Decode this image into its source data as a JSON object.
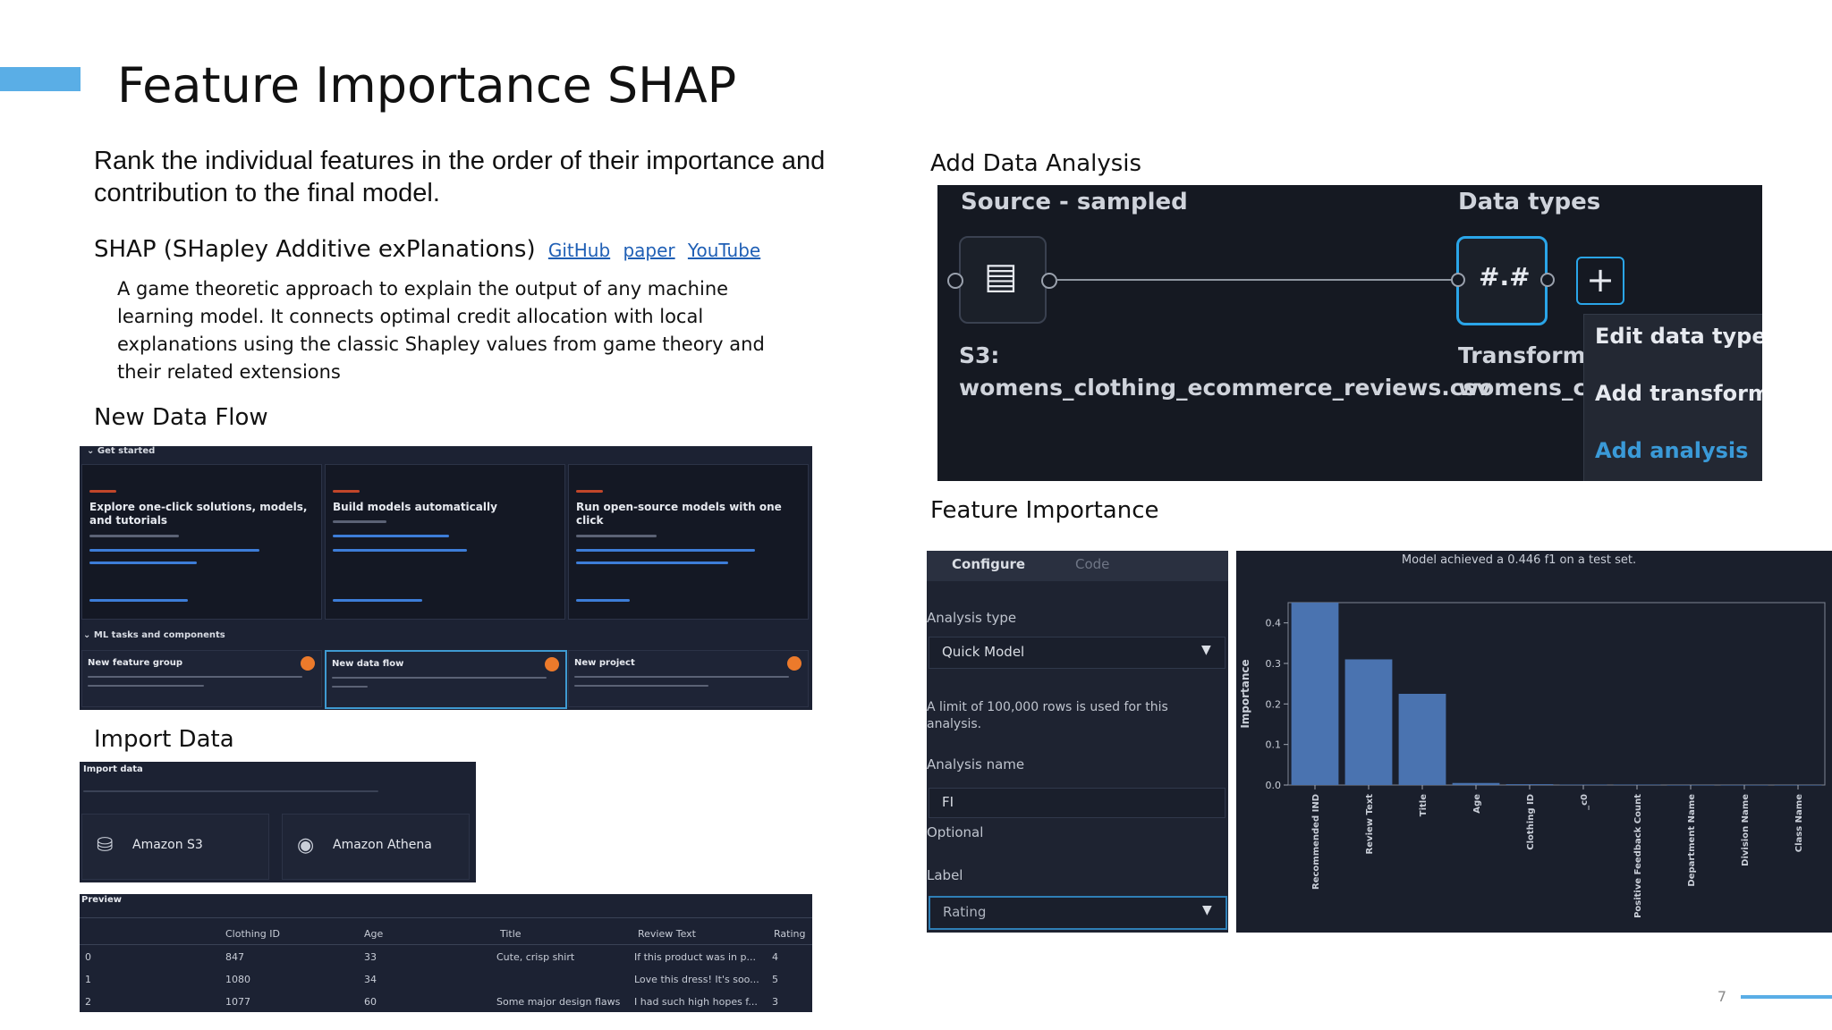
{
  "slide": {
    "title": "Feature Importance SHAP",
    "description": "Rank the individual features in the order of their importance and contribution to the final model.",
    "shap_heading": "SHAP (SHapley Additive exPlanations)",
    "links": [
      "GitHub",
      "paper",
      "YouTube"
    ],
    "shap_description": "A game theoretic approach to explain the output of any machine learning model. It connects optimal credit allocation with local explanations using the classic Shapley values from game theory and their related extensions",
    "page_number": "7",
    "accent_color": "#5aaee6",
    "link_color": "#1f5fb5"
  },
  "new_data_flow": {
    "label": "New Data Flow",
    "get_started": "Get started",
    "cards": [
      {
        "title": "Explore one-click solutions, models, and tutorials"
      },
      {
        "title": "Build models automatically"
      },
      {
        "title": "Run open-source models with one click"
      }
    ],
    "ml_tasks": "ML tasks and components",
    "tasks": [
      {
        "title": "New feature group"
      },
      {
        "title": "New data flow"
      },
      {
        "title": "New project"
      }
    ]
  },
  "import_data": {
    "label": "Import Data",
    "panel_title": "Import data",
    "sources": [
      "Amazon S3",
      "Amazon Athena"
    ]
  },
  "preview": {
    "title": "Preview",
    "columns": [
      "",
      "Clothing ID",
      "Age",
      "Title",
      "Review Text",
      "Rating"
    ],
    "rows": [
      [
        "0",
        "847",
        "33",
        "Cute, crisp shirt",
        "If this product was in p...",
        "4"
      ],
      [
        "1",
        "1080",
        "34",
        "",
        "Love this dress! It's soo...",
        "5"
      ],
      [
        "2",
        "1077",
        "60",
        "Some major design flaws",
        "I had such high hopes f...",
        "3"
      ]
    ]
  },
  "add_data_analysis": {
    "label": "Add Data Analysis",
    "source_header": "Source - sampled",
    "types_header": "Data types",
    "node_symbol": "#.#",
    "source_name_line1": "S3:",
    "source_name_line2": "womens_clothing_ecommerce_reviews.csv",
    "transform_line1": "Transform:",
    "transform_line2": "womens_cl",
    "menu": [
      "Edit data types",
      "Add transform",
      "Add analysis"
    ]
  },
  "feature_importance": {
    "label": "Feature Importance",
    "tabs": [
      "Configure",
      "Code"
    ],
    "analysis_type_label": "Analysis type",
    "analysis_type_value": "Quick Model",
    "limit_note": "A limit of 100,000 rows is used for this analysis.",
    "analysis_name_label": "Analysis name",
    "analysis_name_value": "FI",
    "optional_label": "Optional",
    "label_label": "Label",
    "label_value": "Rating"
  },
  "chart_data": {
    "type": "bar",
    "title": "Model achieved a 0.446 f1 on a test set.",
    "ylabel": "Importance",
    "xlabel": "",
    "categories": [
      "Recommended IND",
      "Review Text",
      "Title",
      "Age",
      "Clothing ID",
      "_c0",
      "Positive Feedback Count",
      "Department Name",
      "Division Name",
      "Class Name"
    ],
    "values": [
      0.45,
      0.31,
      0.225,
      0.005,
      0.002,
      0.001,
      0.001,
      0.0,
      0.0,
      0.0
    ],
    "ylim": [
      0,
      0.45
    ],
    "yticks": [
      "0.0",
      "0.1",
      "0.2",
      "0.3",
      "0.4"
    ],
    "bar_color": "#4a73b0",
    "grid": false
  }
}
